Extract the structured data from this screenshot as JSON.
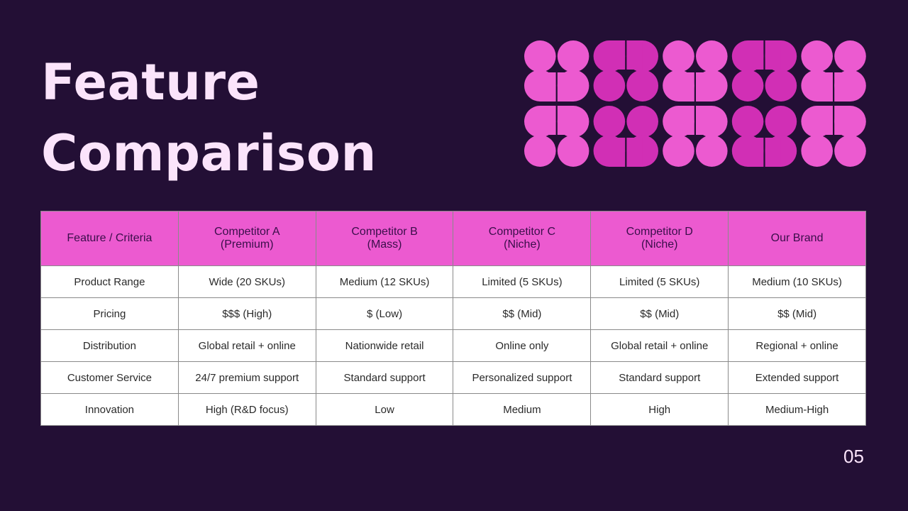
{
  "slide": {
    "title_lines": [
      "Feature",
      "Comparison"
    ],
    "page_number": "05"
  },
  "colors": {
    "background": "#230F35",
    "title": "#FBE4FB",
    "header_bg": "#EC5AD0",
    "header_text": "#3A0E4A",
    "pattern_light": "#EC5AD0",
    "pattern_dark": "#D12FB5",
    "cell_bg": "#FFFFFF",
    "cell_text": "#2A2A2A",
    "border": "#8A8A8A"
  },
  "table": {
    "headers": [
      {
        "line1": "Feature / Criteria",
        "line2": ""
      },
      {
        "line1": "Competitor A",
        "line2": "(Premium)"
      },
      {
        "line1": "Competitor B",
        "line2": "(Mass)"
      },
      {
        "line1": "Competitor C",
        "line2": "(Niche)"
      },
      {
        "line1": "Competitor D",
        "line2": "(Niche)"
      },
      {
        "line1": "Our Brand",
        "line2": ""
      }
    ],
    "rows": [
      [
        "Product Range",
        "Wide (20 SKUs)",
        "Medium (12 SKUs)",
        "Limited (5 SKUs)",
        "Limited (5 SKUs)",
        "Medium (10 SKUs)"
      ],
      [
        "Pricing",
        "$$$ (High)",
        "$ (Low)",
        "$$ (Mid)",
        "$$ (Mid)",
        "$$ (Mid)"
      ],
      [
        "Distribution",
        "Global retail + online",
        "Nationwide retail",
        "Online only",
        "Global retail + online",
        "Regional + online"
      ],
      [
        "Customer Service",
        "24/7 premium support",
        "Standard support",
        "Personalized support",
        "Standard support",
        "Extended support"
      ],
      [
        "Innovation",
        "High (R&D focus)",
        "Low",
        "Medium",
        "High",
        "Medium-High"
      ]
    ]
  },
  "decoration": {
    "icon": "geometric-pattern",
    "columns": 10,
    "rows": 2,
    "column_tones": [
      "light",
      "light",
      "dark",
      "dark",
      "light",
      "light",
      "dark",
      "dark",
      "light",
      "light"
    ]
  }
}
